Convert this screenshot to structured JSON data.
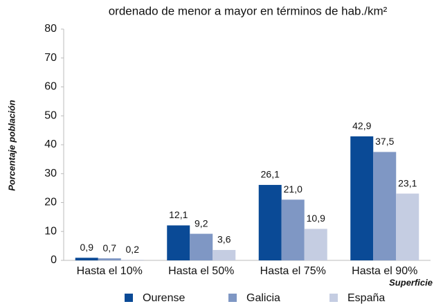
{
  "chart_data": {
    "type": "bar",
    "title": "ordenado de menor a mayor en términos de hab./km²",
    "y_label": "Porcentaje población",
    "x_label": "Superficie",
    "categories": [
      "Hasta el 10%",
      "Hasta el 50%",
      "Hasta el 75%",
      "Hasta el 90%"
    ],
    "series": [
      {
        "name": "Ourense",
        "color": "#0a4a96",
        "values": [
          0.9,
          12.1,
          26.1,
          42.9
        ],
        "value_labels": [
          "0,9",
          "12,1",
          "26,1",
          "42,9"
        ]
      },
      {
        "name": "Galicia",
        "color": "#7f97c4",
        "values": [
          0.7,
          9.2,
          21.0,
          37.5
        ],
        "value_labels": [
          "0,7",
          "9,2",
          "21,0",
          "37,5"
        ]
      },
      {
        "name": "España",
        "color": "#c5cde2",
        "values": [
          0.2,
          3.6,
          10.9,
          23.1
        ],
        "value_labels": [
          "0,2",
          "3,6",
          "10,9",
          "23,1"
        ]
      }
    ],
    "ylim": [
      0,
      80
    ],
    "yticks": [
      0,
      10,
      20,
      30,
      40,
      50,
      60,
      70,
      80
    ],
    "grid": false,
    "legend": "bottom"
  }
}
